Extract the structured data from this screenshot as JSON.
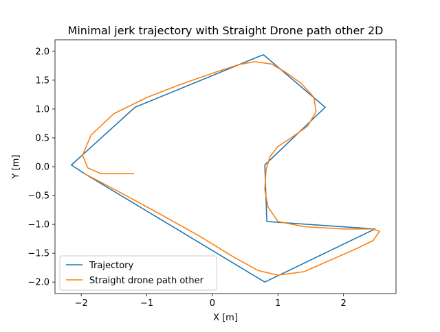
{
  "chart_data": {
    "type": "line",
    "title": "Minimal jerk trajectory with Straight Drone path other 2D",
    "xlabel": "X [m]",
    "ylabel": "Y [m]",
    "xlim": [
      -2.4,
      2.8
    ],
    "ylim": [
      -2.2,
      2.2
    ],
    "grid": false,
    "legend_position": "lower left",
    "x_ticks": [
      {
        "value": -2,
        "label": "−2"
      },
      {
        "value": -1,
        "label": "−1"
      },
      {
        "value": 0,
        "label": "0"
      },
      {
        "value": 1,
        "label": "1"
      },
      {
        "value": 2,
        "label": "2"
      }
    ],
    "y_ticks": [
      {
        "value": -2.0,
        "label": "−2.0"
      },
      {
        "value": -1.5,
        "label": "−1.5"
      },
      {
        "value": -1.0,
        "label": "−1.0"
      },
      {
        "value": -0.5,
        "label": "−0.5"
      },
      {
        "value": 0.0,
        "label": "0.0"
      },
      {
        "value": 0.5,
        "label": "0.5"
      },
      {
        "value": 1.0,
        "label": "1.0"
      },
      {
        "value": 1.5,
        "label": "1.5"
      },
      {
        "value": 2.0,
        "label": "2.0"
      }
    ],
    "series": [
      {
        "name": "Trajectory",
        "color": "#1f77b4",
        "x": [
          0.78,
          1.72,
          0.8,
          0.83,
          2.48,
          0.8,
          -1.95,
          -2.15,
          -1.18,
          0.73,
          0.78
        ],
        "y": [
          1.94,
          1.03,
          0.03,
          -0.95,
          -1.08,
          -2.0,
          -0.12,
          0.03,
          1.03,
          1.92,
          1.94
        ]
      },
      {
        "name": "Straight drone path other",
        "color": "#ff7f0e",
        "x": [
          -1.95,
          -1.4,
          -0.8,
          -0.2,
          0.3,
          0.7,
          1.0,
          1.4,
          1.8,
          2.2,
          2.45,
          2.55,
          2.45,
          2.0,
          1.4,
          1.0,
          0.85,
          0.8,
          0.82,
          0.88,
          1.0,
          1.2,
          1.45,
          1.58,
          1.55,
          1.35,
          1.1,
          0.9,
          0.65,
          0.4,
          0.0,
          -0.5,
          -1.0,
          -1.5,
          -1.85,
          -1.98,
          -1.9,
          -1.7,
          -1.2
        ],
        "y": [
          -0.12,
          -0.45,
          -0.82,
          -1.2,
          -1.55,
          -1.8,
          -1.88,
          -1.82,
          -1.62,
          -1.42,
          -1.28,
          -1.12,
          -1.08,
          -1.08,
          -1.04,
          -0.95,
          -0.7,
          -0.4,
          -0.05,
          0.18,
          0.35,
          0.5,
          0.7,
          0.95,
          1.2,
          1.45,
          1.65,
          1.78,
          1.82,
          1.77,
          1.62,
          1.42,
          1.2,
          0.92,
          0.55,
          0.2,
          -0.02,
          -0.12,
          -0.12
        ]
      }
    ]
  }
}
